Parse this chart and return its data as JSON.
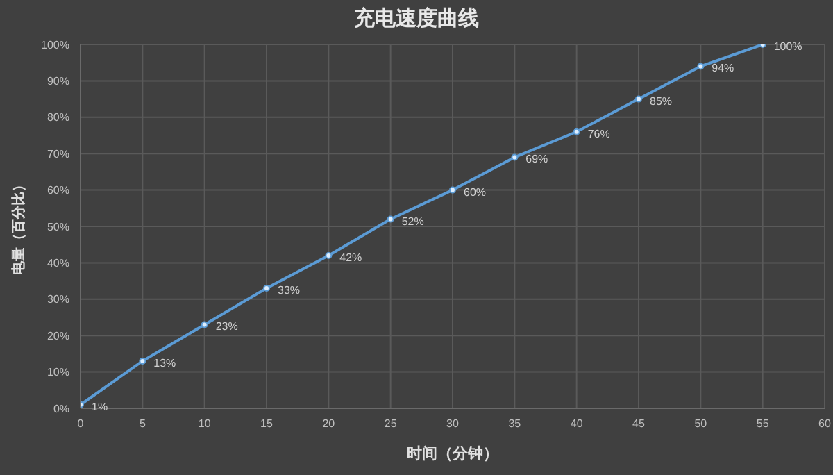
{
  "chart_data": {
    "type": "line",
    "title": "充电速度曲线",
    "xlabel": "时间（分钟）",
    "ylabel": "电量（百分比）",
    "x": [
      0,
      5,
      10,
      15,
      20,
      25,
      30,
      35,
      40,
      45,
      50,
      55
    ],
    "series": [
      {
        "color": "#5b9bd5",
        "values": [
          1,
          13,
          23,
          33,
          42,
          52,
          60,
          69,
          76,
          85,
          94,
          100
        ],
        "value_labels": [
          "1%",
          "13%",
          "23%",
          "33%",
          "42%",
          "52%",
          "60%",
          "69%",
          "76%",
          "85%",
          "94%",
          "100%"
        ]
      }
    ],
    "xlim": [
      0,
      60
    ],
    "xticks": [
      0,
      5,
      10,
      15,
      20,
      25,
      30,
      35,
      40,
      45,
      50,
      55,
      60
    ],
    "ylim": [
      0,
      100
    ],
    "yticks": [
      {
        "value": 0,
        "label": "0%"
      },
      {
        "value": 10,
        "label": "10%"
      },
      {
        "value": 20,
        "label": "20%"
      },
      {
        "value": 30,
        "label": "30%"
      },
      {
        "value": 40,
        "label": "40%"
      },
      {
        "value": 50,
        "label": "50%"
      },
      {
        "value": 60,
        "label": "60%"
      },
      {
        "value": 70,
        "label": "70%"
      },
      {
        "value": 80,
        "label": "80%"
      },
      {
        "value": 90,
        "label": "90%"
      },
      {
        "value": 100,
        "label": "100%"
      }
    ],
    "grid": true,
    "marker": "circle",
    "line_style": "solid",
    "legend": false
  }
}
